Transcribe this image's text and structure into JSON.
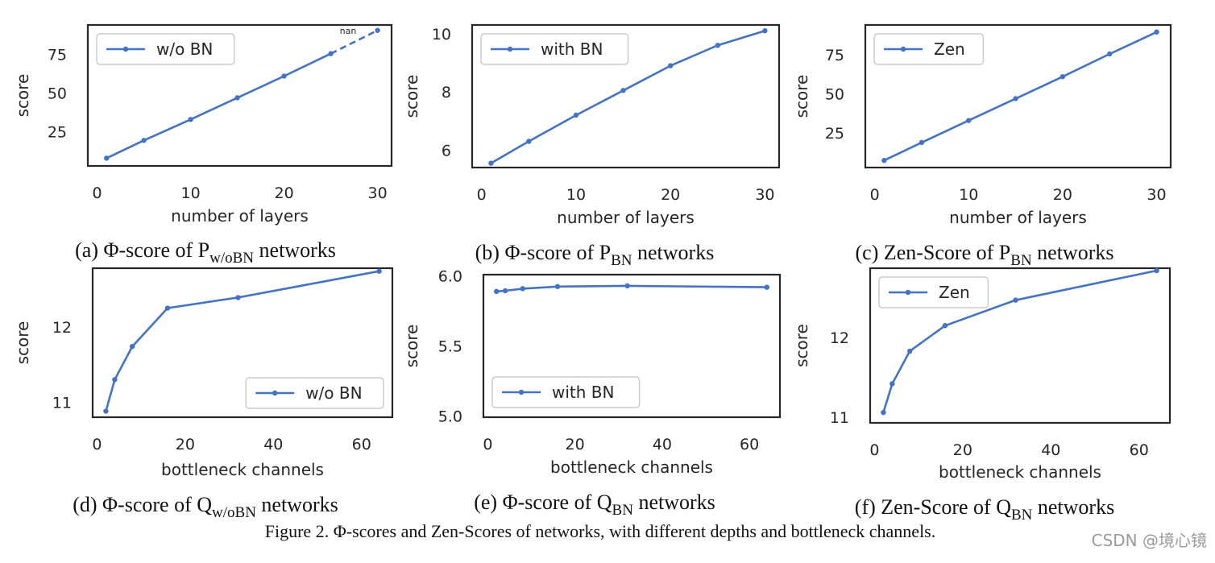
{
  "colors": {
    "series": "#4472c4",
    "frame": "#262626",
    "legend_border": "#cccccc"
  },
  "chart_data": [
    {
      "id": "a",
      "type": "line",
      "xlabel": "number of layers",
      "ylabel": "score",
      "xlim": [
        -1,
        31.5
      ],
      "ylim": [
        3,
        94
      ],
      "xticks": [
        0,
        10,
        20,
        30
      ],
      "yticks": [
        25,
        50,
        75
      ],
      "legend": "top-left",
      "series": [
        {
          "name": "w/o BN",
          "x": [
            1,
            5,
            10,
            15,
            20,
            25
          ],
          "y": [
            8,
            19.5,
            33,
            47,
            61,
            75.5
          ]
        }
      ],
      "dashed_segment": {
        "x": [
          25,
          30
        ],
        "y": [
          75.5,
          90.5
        ]
      },
      "annotation": "nan",
      "caption": {
        "pre": "(a) Φ-score of P",
        "sub": "w/oBN",
        "post": " networks"
      }
    },
    {
      "id": "b",
      "type": "line",
      "xlabel": "number of layers",
      "ylabel": "score",
      "xlim": [
        -1,
        31.5
      ],
      "ylim": [
        5.4,
        10.3
      ],
      "xticks": [
        0,
        10,
        20,
        30
      ],
      "yticks": [
        6,
        8,
        10
      ],
      "legend": "top-left",
      "series": [
        {
          "name": "with BN",
          "x": [
            1,
            5,
            10,
            15,
            20,
            25,
            30
          ],
          "y": [
            5.55,
            6.3,
            7.2,
            8.05,
            8.9,
            9.6,
            10.1
          ]
        }
      ],
      "caption": {
        "pre": "(b) Φ-score of P",
        "sub": "BN",
        "post": " networks"
      }
    },
    {
      "id": "c",
      "type": "line",
      "xlabel": "number of layers",
      "ylabel": "score",
      "xlim": [
        -1,
        31.5
      ],
      "ylim": [
        3,
        94
      ],
      "xticks": [
        0,
        10,
        20,
        30
      ],
      "yticks": [
        25,
        50,
        75
      ],
      "legend": "top-left",
      "series": [
        {
          "name": "Zen",
          "x": [
            1,
            5,
            10,
            15,
            20,
            25,
            30
          ],
          "y": [
            7.5,
            19,
            33,
            47,
            61,
            75.5,
            89.5
          ]
        }
      ],
      "caption": {
        "pre": "(c) Zen-Score of P",
        "sub": "BN",
        "post": " networks"
      }
    },
    {
      "id": "d",
      "type": "line",
      "xlabel": "bottleneck channels",
      "ylabel": "score",
      "xlim": [
        -1,
        67
      ],
      "ylim": [
        10.8,
        12.78
      ],
      "xticks": [
        0,
        20,
        40,
        60
      ],
      "yticks": [
        11,
        12
      ],
      "legend": "bottom-right",
      "series": [
        {
          "name": "w/o BN",
          "x": [
            2,
            4,
            8,
            16,
            32,
            64
          ],
          "y": [
            10.88,
            11.3,
            11.74,
            12.25,
            12.39,
            12.74
          ]
        }
      ],
      "caption": {
        "pre": "(d) Φ-score of Q",
        "sub": "w/oBN",
        "post": " networks"
      }
    },
    {
      "id": "e",
      "type": "line",
      "xlabel": "bottleneck channels",
      "ylabel": "score",
      "xlim": [
        -1,
        67
      ],
      "ylim": [
        4.99,
        6.01
      ],
      "xticks": [
        0,
        20,
        40,
        60
      ],
      "yticks": [
        5.0,
        5.5,
        6.0
      ],
      "ytick_labels": [
        "5.0",
        "5.5",
        "6.0"
      ],
      "legend": "bottom-left",
      "series": [
        {
          "name": "with BN",
          "x": [
            2,
            4,
            8,
            16,
            32,
            64
          ],
          "y": [
            5.89,
            5.895,
            5.91,
            5.925,
            5.93,
            5.92
          ]
        }
      ],
      "caption": {
        "pre": "(e) Φ-score of Q",
        "sub": "BN",
        "post": " networks"
      }
    },
    {
      "id": "f",
      "type": "line",
      "xlabel": "bottleneck channels",
      "ylabel": "score",
      "xlim": [
        -1,
        67
      ],
      "ylim": [
        10.93,
        12.87
      ],
      "xticks": [
        0,
        20,
        40,
        60
      ],
      "yticks": [
        11,
        12
      ],
      "legend": "top-left",
      "series": [
        {
          "name": "Zen",
          "x": [
            2,
            4,
            8,
            16,
            32,
            64
          ],
          "y": [
            11.06,
            11.42,
            11.83,
            12.15,
            12.47,
            12.84
          ]
        }
      ],
      "caption": {
        "pre": "(f) Zen-Score of Q",
        "sub": "BN",
        "post": " networks"
      }
    }
  ],
  "figure_caption": "Figure 2. Φ-scores and Zen-Scores of networks, with different depths and bottleneck channels.",
  "watermark": "CSDN @境心镜"
}
